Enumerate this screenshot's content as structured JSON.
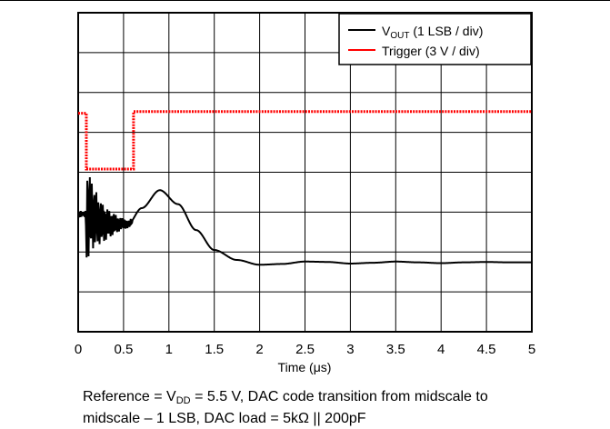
{
  "chart_data": {
    "type": "line",
    "xlabel": {
      "prefix": "Time (",
      "symbol": "μ",
      "suffix": "s)"
    },
    "xlim": [
      0,
      5
    ],
    "x_ticks": [
      "0",
      "0.5",
      "1",
      "1.5",
      "2",
      "2.5",
      "3",
      "3.5",
      "4",
      "4.5",
      "5"
    ],
    "y_divisions": 8,
    "grid": true,
    "legend_position": "top-right",
    "legend": [
      {
        "name_main": "V",
        "name_sub": "OUT",
        "name_rest": " (1 LSB / div)",
        "color": "#000000"
      },
      {
        "name_main": "Trigger (3 V / div)",
        "name_sub": "",
        "name_rest": "",
        "color": "#ff0000"
      }
    ],
    "series": [
      {
        "key": "vout",
        "color": "#000000",
        "unit": "div",
        "points": [
          [
            0.0,
            2.95
          ],
          [
            0.1,
            2.95
          ],
          [
            0.3,
            2.7
          ],
          [
            0.55,
            2.7
          ],
          [
            0.7,
            3.1
          ],
          [
            0.9,
            3.55
          ],
          [
            1.1,
            3.2
          ],
          [
            1.3,
            2.55
          ],
          [
            1.5,
            2.05
          ],
          [
            1.75,
            1.8
          ],
          [
            2.0,
            1.68
          ],
          [
            2.25,
            1.7
          ],
          [
            2.5,
            1.76
          ],
          [
            2.75,
            1.75
          ],
          [
            3.0,
            1.71
          ],
          [
            3.25,
            1.73
          ],
          [
            3.5,
            1.76
          ],
          [
            3.75,
            1.74
          ],
          [
            4.0,
            1.72
          ],
          [
            4.25,
            1.74
          ],
          [
            4.5,
            1.75
          ],
          [
            4.75,
            1.74
          ],
          [
            5.0,
            1.74
          ]
        ]
      },
      {
        "key": "trigger",
        "color": "#ff0000",
        "unit": "div",
        "points": [
          [
            0.0,
            5.48
          ],
          [
            0.08,
            5.48
          ],
          [
            0.09,
            4.08
          ],
          [
            0.6,
            4.08
          ],
          [
            0.61,
            5.52
          ],
          [
            5.0,
            5.52
          ]
        ]
      }
    ]
  },
  "caption": {
    "line1_a": "Reference = V",
    "line1_sub": "DD",
    "line1_b": " = 5.5 V, DAC code transition from midscale to",
    "line2": "midscale – 1 LSB, DAC load = 5kΩ || 200pF"
  }
}
